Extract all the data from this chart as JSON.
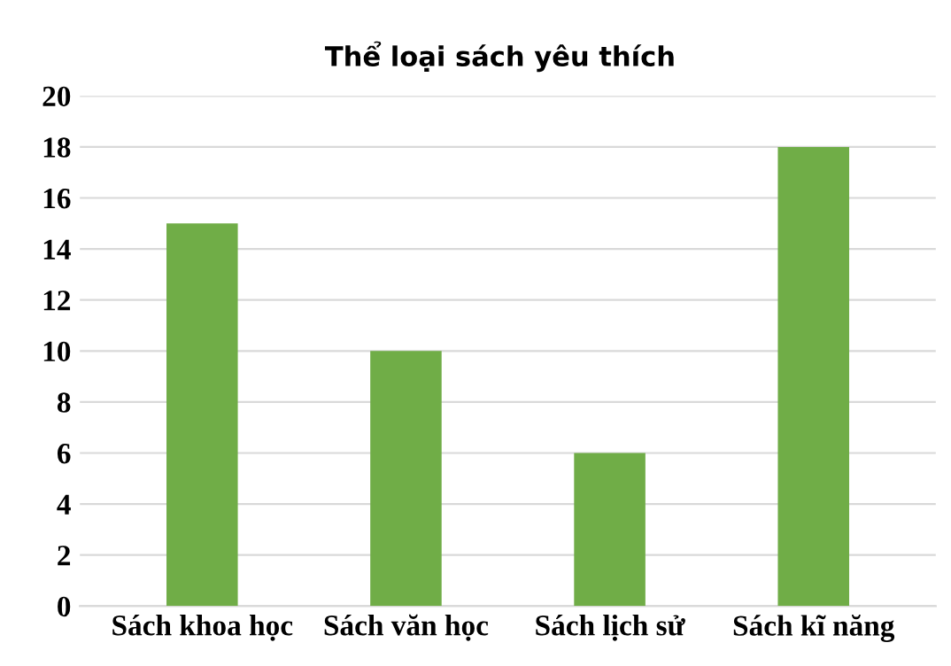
{
  "chart_data": {
    "type": "bar",
    "title": "Thể loại sách yêu thích",
    "categories": [
      "Sách khoa học",
      "Sách văn học",
      "Sách lịch sử",
      "Sách kĩ năng"
    ],
    "values": [
      15,
      10,
      6,
      18
    ],
    "color": "#70ad47",
    "ylim": [
      0,
      20
    ],
    "yticks": [
      0,
      2,
      4,
      6,
      8,
      10,
      12,
      14,
      16,
      18,
      20
    ],
    "grid": "y",
    "legend": false
  }
}
